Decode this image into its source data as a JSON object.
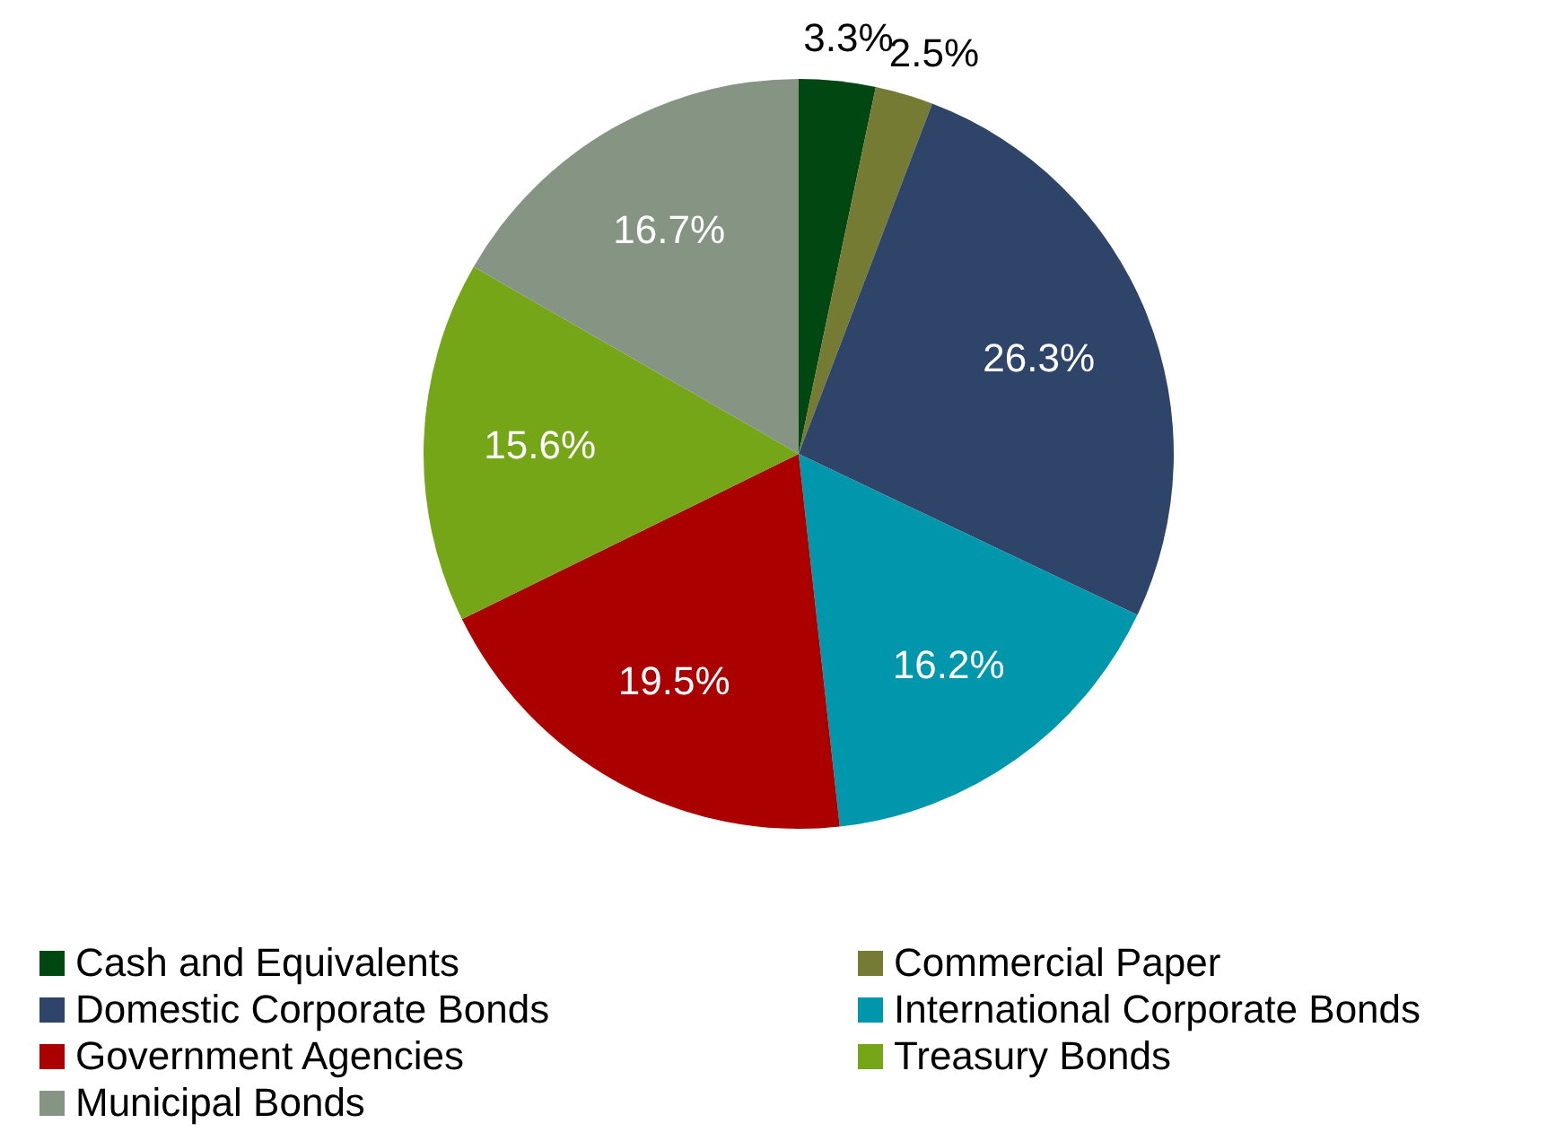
{
  "chart_data": {
    "type": "pie",
    "categories": [
      "Cash and Equivalents",
      "Commercial Paper",
      "Domestic Corporate Bonds",
      "International Corporate Bonds",
      "Government Agencies",
      "Treasury Bonds",
      "Municipal Bonds"
    ],
    "values": [
      3.3,
      2.5,
      26.3,
      16.2,
      19.5,
      15.6,
      16.7
    ],
    "colors": [
      "#004712",
      "#767b34",
      "#2e4468",
      "#0097ad",
      "#aa0000",
      "#74a618",
      "#869484"
    ],
    "value_labels": [
      "3.3%",
      "2.5%",
      "26.3%",
      "16.2%",
      "19.5%",
      "15.6%",
      "16.7%"
    ],
    "legend": "bottom"
  }
}
